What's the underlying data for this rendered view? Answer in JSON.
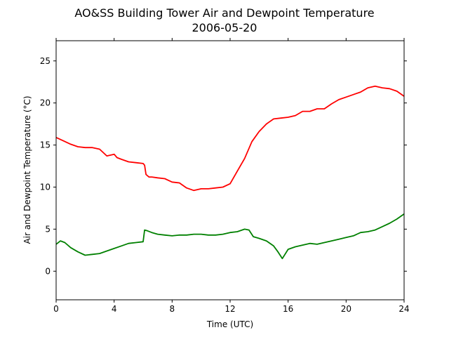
{
  "chart_data": {
    "type": "line",
    "title": "AO&SS Building Tower Air and Dewpoint Temperature",
    "subtitle": "2006-05-20",
    "xlabel": "Time (UTC)",
    "ylabel": "Air and Dewpoint Temperature (°C)",
    "xlim": [
      0,
      24
    ],
    "ylim": [
      -3.4,
      27.4
    ],
    "xticks": [
      0,
      4,
      8,
      12,
      16,
      20,
      24
    ],
    "yticks": [
      0,
      5,
      10,
      15,
      20,
      25
    ],
    "grid": false,
    "legend": "none",
    "series": [
      {
        "color": "#ff0000",
        "x": [
          0,
          0.5,
          1,
          1.5,
          2,
          2.5,
          3,
          3.5,
          4,
          4.2,
          4.5,
          5,
          5.5,
          6,
          6.1,
          6.2,
          6.4,
          6.6,
          7,
          7.5,
          8,
          8.5,
          9,
          9.5,
          10,
          10.5,
          11,
          11.5,
          12,
          12.5,
          13,
          13.5,
          14,
          14.5,
          15,
          15.5,
          16,
          16.5,
          17,
          17.5,
          18,
          18.5,
          19,
          19.5,
          20,
          20.5,
          21,
          21.5,
          22,
          22.5,
          23,
          23.5,
          24
        ],
        "y": [
          15.9,
          15.5,
          15.1,
          14.8,
          14.7,
          14.7,
          14.5,
          13.7,
          13.9,
          13.5,
          13.3,
          13.0,
          12.9,
          12.8,
          12.6,
          11.5,
          11.2,
          11.2,
          11.1,
          11.0,
          10.6,
          10.5,
          9.9,
          9.6,
          9.8,
          9.8,
          9.9,
          10.0,
          10.4,
          11.9,
          13.4,
          15.4,
          16.6,
          17.5,
          18.1,
          18.2,
          18.3,
          18.5,
          19.0,
          19.0,
          19.3,
          19.3,
          19.9,
          20.4,
          20.7,
          21.0,
          21.3,
          21.8,
          22.0,
          21.8,
          21.7,
          21.4,
          20.8
        ]
      },
      {
        "color": "#008000",
        "x": [
          0,
          0.3,
          0.6,
          1,
          1.5,
          2,
          2.5,
          3,
          3.5,
          4,
          4.5,
          5,
          5.5,
          6,
          6.1,
          6.3,
          6.6,
          7,
          7.5,
          8,
          8.5,
          9,
          9.5,
          10,
          10.5,
          11,
          11.5,
          12,
          12.5,
          13,
          13.3,
          13.6,
          14,
          14.5,
          15,
          15.3,
          15.6,
          16,
          16.5,
          17,
          17.5,
          18,
          18.5,
          19,
          19.5,
          20,
          20.5,
          21,
          21.5,
          22,
          22.5,
          23,
          23.5,
          24
        ],
        "y": [
          3.2,
          3.6,
          3.4,
          2.8,
          2.3,
          1.9,
          2.0,
          2.1,
          2.4,
          2.7,
          3.0,
          3.3,
          3.4,
          3.5,
          4.9,
          4.8,
          4.6,
          4.4,
          4.3,
          4.2,
          4.3,
          4.3,
          4.4,
          4.4,
          4.3,
          4.3,
          4.4,
          4.6,
          4.7,
          5.0,
          4.9,
          4.1,
          3.9,
          3.6,
          3.0,
          2.3,
          1.5,
          2.6,
          2.9,
          3.1,
          3.3,
          3.2,
          3.4,
          3.6,
          3.8,
          4.0,
          4.2,
          4.6,
          4.7,
          4.9,
          5.3,
          5.7,
          6.2,
          6.8
        ]
      }
    ]
  }
}
